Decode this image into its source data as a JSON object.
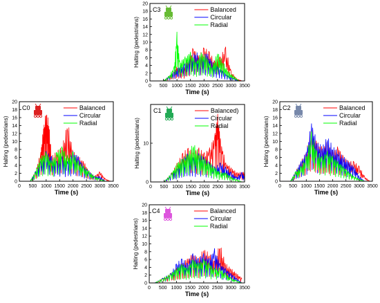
{
  "colors": {
    "balanced": "#ff0000",
    "circular": "#0000ff",
    "radial": "#00ff00",
    "axis": "#000000"
  },
  "chart_data": [
    {
      "id": "C3",
      "type": "line",
      "label": "C3",
      "icon": "robot-icon",
      "icon_color": "#66bb33",
      "xlabel": "Time (s)",
      "ylabel": "Halting (pedestrians)",
      "xlim": [
        0,
        3500
      ],
      "ylim": [
        0,
        20
      ],
      "xticks": [
        0,
        500,
        1000,
        1500,
        2000,
        2500,
        3000,
        3500
      ],
      "yticks": [
        0,
        2,
        4,
        6,
        8,
        10,
        12,
        14,
        16,
        18,
        20
      ],
      "series": [
        {
          "name": "Balanced",
          "values": [
            [
              500,
              0
            ],
            [
              700,
              1
            ],
            [
              900,
              2
            ],
            [
              1000,
              3
            ],
            [
              1200,
              2
            ],
            [
              1400,
              4
            ],
            [
              1600,
              7
            ],
            [
              1800,
              5
            ],
            [
              2000,
              7
            ],
            [
              2200,
              6
            ],
            [
              2400,
              4
            ],
            [
              2600,
              5
            ],
            [
              2800,
              7
            ],
            [
              3000,
              2
            ],
            [
              3200,
              0.5
            ],
            [
              3400,
              0
            ]
          ]
        },
        {
          "name": "Circular",
          "values": [
            [
              500,
              0
            ],
            [
              700,
              1
            ],
            [
              900,
              2
            ],
            [
              1100,
              3
            ],
            [
              1300,
              4
            ],
            [
              1500,
              5
            ],
            [
              1700,
              6
            ],
            [
              1900,
              5
            ],
            [
              2100,
              6
            ],
            [
              2300,
              4
            ],
            [
              2500,
              3
            ],
            [
              2700,
              2
            ],
            [
              2900,
              1
            ],
            [
              3100,
              0.5
            ],
            [
              3300,
              0
            ]
          ]
        },
        {
          "name": "Radial",
          "values": [
            [
              500,
              0
            ],
            [
              700,
              1
            ],
            [
              900,
              3
            ],
            [
              1000,
              10
            ],
            [
              1100,
              4
            ],
            [
              1300,
              5
            ],
            [
              1500,
              6
            ],
            [
              1700,
              4
            ],
            [
              1900,
              6
            ],
            [
              2100,
              5
            ],
            [
              2300,
              3
            ],
            [
              2500,
              6
            ],
            [
              2700,
              4
            ],
            [
              2900,
              2
            ],
            [
              3100,
              1
            ],
            [
              3300,
              0
            ]
          ]
        }
      ]
    },
    {
      "id": "C0",
      "type": "line",
      "label": "C0",
      "icon": "robot-icon",
      "icon_color": "#dd2222",
      "xlabel": "Time (s)",
      "ylabel": "Halting (pedestrians)",
      "xlim": [
        0,
        3500
      ],
      "ylim": [
        0,
        20
      ],
      "xticks": [
        0,
        500,
        1000,
        1500,
        2000,
        2500,
        3000,
        3500
      ],
      "yticks": [
        0,
        2,
        4,
        6,
        8,
        10,
        12,
        14,
        16,
        18,
        20
      ],
      "series": [
        {
          "name": "Balanced",
          "values": [
            [
              400,
              0
            ],
            [
              600,
              2
            ],
            [
              800,
              6
            ],
            [
              900,
              11
            ],
            [
              1000,
              14
            ],
            [
              1100,
              12
            ],
            [
              1200,
              5
            ],
            [
              1400,
              6
            ],
            [
              1600,
              7
            ],
            [
              1800,
              12
            ],
            [
              2000,
              6
            ],
            [
              2200,
              5
            ],
            [
              2400,
              4
            ],
            [
              2600,
              2
            ],
            [
              2800,
              1
            ],
            [
              3000,
              2
            ],
            [
              3200,
              0.5
            ],
            [
              3400,
              0
            ]
          ]
        },
        {
          "name": "Circular",
          "values": [
            [
              400,
              0
            ],
            [
              600,
              2
            ],
            [
              800,
              4
            ],
            [
              1000,
              6
            ],
            [
              1200,
              5
            ],
            [
              1400,
              4
            ],
            [
              1600,
              5
            ],
            [
              1800,
              4
            ],
            [
              2000,
              6
            ],
            [
              2200,
              5
            ],
            [
              2400,
              3
            ],
            [
              2600,
              2
            ],
            [
              2800,
              1
            ],
            [
              3000,
              1
            ],
            [
              3200,
              0
            ]
          ]
        },
        {
          "name": "Radial",
          "values": [
            [
              400,
              0
            ],
            [
              600,
              2
            ],
            [
              800,
              5
            ],
            [
              1000,
              6
            ],
            [
              1200,
              4
            ],
            [
              1400,
              6
            ],
            [
              1600,
              7
            ],
            [
              1800,
              5
            ],
            [
              2000,
              6
            ],
            [
              2200,
              4
            ],
            [
              2400,
              3
            ],
            [
              2600,
              2
            ],
            [
              2800,
              1
            ],
            [
              3000,
              0.5
            ],
            [
              3200,
              0
            ]
          ]
        }
      ]
    },
    {
      "id": "C1",
      "type": "line",
      "label": "C1",
      "icon": "robot-icon",
      "icon_color": "#22aa55",
      "xlabel": "Time (s)",
      "ylabel": "Halting (pedestrians)",
      "xlim": [
        0,
        3500
      ],
      "ylim": [
        0,
        20
      ],
      "xticks": [
        0,
        500,
        1000,
        1500,
        2000,
        2500,
        3000,
        3500
      ],
      "yticks": [
        0,
        10
      ],
      "series": [
        {
          "name": "Balanced)",
          "values": [
            [
              500,
              0
            ],
            [
              800,
              2
            ],
            [
              1000,
              4
            ],
            [
              1200,
              6
            ],
            [
              1400,
              7
            ],
            [
              1600,
              6
            ],
            [
              1800,
              7
            ],
            [
              2000,
              6
            ],
            [
              2200,
              7
            ],
            [
              2400,
              10
            ],
            [
              2500,
              14
            ],
            [
              2600,
              9
            ],
            [
              2800,
              4
            ],
            [
              3000,
              3
            ],
            [
              3200,
              2
            ],
            [
              3400,
              2
            ],
            [
              3500,
              2
            ]
          ]
        },
        {
          "name": "Circular",
          "values": [
            [
              500,
              0
            ],
            [
              800,
              2
            ],
            [
              1000,
              3
            ],
            [
              1200,
              5
            ],
            [
              1400,
              6
            ],
            [
              1600,
              5
            ],
            [
              1800,
              6
            ],
            [
              2000,
              5
            ],
            [
              2200,
              4
            ],
            [
              2400,
              3
            ],
            [
              2600,
              4
            ],
            [
              2800,
              3
            ],
            [
              3000,
              2
            ],
            [
              3200,
              1
            ],
            [
              3400,
              2
            ],
            [
              3500,
              1
            ]
          ]
        },
        {
          "name": "Radial",
          "values": [
            [
              500,
              0
            ],
            [
              800,
              2
            ],
            [
              1000,
              4
            ],
            [
              1200,
              5
            ],
            [
              1400,
              6
            ],
            [
              1600,
              8
            ],
            [
              1800,
              6
            ],
            [
              2000,
              5
            ],
            [
              2200,
              4
            ],
            [
              2400,
              3
            ],
            [
              2600,
              2
            ],
            [
              2800,
              2
            ],
            [
              3000,
              1
            ],
            [
              3200,
              0.5
            ],
            [
              3400,
              0
            ]
          ]
        }
      ]
    },
    {
      "id": "C2",
      "type": "line",
      "label": "C2",
      "icon": "robot-icon",
      "icon_color": "#7788aa",
      "xlabel": "Time (s)",
      "ylabel": "Halting (pedestrians)",
      "xlim": [
        0,
        3500
      ],
      "ylim": [
        0,
        20
      ],
      "xticks": [
        0,
        500,
        1000,
        1500,
        2000,
        2500,
        3000,
        3500
      ],
      "yticks": [
        0,
        2,
        4,
        6,
        8,
        10,
        12,
        14,
        16,
        18,
        20
      ],
      "series": [
        {
          "name": "Balanced",
          "values": [
            [
              400,
              0
            ],
            [
              600,
              2
            ],
            [
              800,
              4
            ],
            [
              1000,
              6
            ],
            [
              1200,
              11
            ],
            [
              1400,
              8
            ],
            [
              1600,
              7
            ],
            [
              1800,
              8
            ],
            [
              2000,
              6
            ],
            [
              2200,
              7
            ],
            [
              2400,
              5
            ],
            [
              2600,
              4
            ],
            [
              2800,
              4
            ],
            [
              3000,
              3
            ],
            [
              3200,
              1
            ],
            [
              3400,
              0
            ]
          ]
        },
        {
          "name": "Circular",
          "values": [
            [
              400,
              0
            ],
            [
              600,
              2
            ],
            [
              800,
              4
            ],
            [
              1000,
              6
            ],
            [
              1200,
              12
            ],
            [
              1400,
              8
            ],
            [
              1600,
              7
            ],
            [
              1800,
              9
            ],
            [
              2000,
              7
            ],
            [
              2200,
              6
            ],
            [
              2400,
              5
            ],
            [
              2600,
              4
            ],
            [
              2800,
              3
            ],
            [
              3000,
              1
            ],
            [
              3200,
              0
            ]
          ]
        },
        {
          "name": "Radial",
          "values": [
            [
              400,
              0
            ],
            [
              600,
              2
            ],
            [
              800,
              3
            ],
            [
              1000,
              5
            ],
            [
              1200,
              10
            ],
            [
              1400,
              6
            ],
            [
              1600,
              5
            ],
            [
              1800,
              6
            ],
            [
              2000,
              5
            ],
            [
              2200,
              4
            ],
            [
              2400,
              3
            ],
            [
              2600,
              2
            ],
            [
              2800,
              1
            ],
            [
              3000,
              0.5
            ],
            [
              3200,
              0
            ]
          ]
        }
      ]
    },
    {
      "id": "C4",
      "type": "line",
      "label": "C4",
      "icon": "robot-icon",
      "icon_color": "#dd55dd",
      "xlabel": "Time (s)",
      "ylabel": "Halting (pedestrians)",
      "xlim": [
        0,
        3500
      ],
      "ylim": [
        0,
        20
      ],
      "xticks": [
        0,
        500,
        1000,
        1500,
        2000,
        2500,
        3000,
        3500
      ],
      "yticks": [
        0,
        2,
        4,
        6,
        8,
        10,
        12,
        14,
        16,
        18,
        20
      ],
      "series": [
        {
          "name": "Balanced",
          "values": [
            [
              200,
              0
            ],
            [
              500,
              1
            ],
            [
              800,
              2
            ],
            [
              1000,
              3
            ],
            [
              1200,
              4
            ],
            [
              1400,
              5
            ],
            [
              1600,
              6
            ],
            [
              1800,
              5
            ],
            [
              2000,
              7
            ],
            [
              2200,
              6
            ],
            [
              2400,
              5
            ],
            [
              2600,
              8
            ],
            [
              2800,
              4
            ],
            [
              3000,
              3
            ],
            [
              3200,
              2
            ],
            [
              3400,
              1
            ]
          ]
        },
        {
          "name": "Circular",
          "values": [
            [
              200,
              0
            ],
            [
              500,
              1
            ],
            [
              800,
              2
            ],
            [
              1000,
              4
            ],
            [
              1200,
              5
            ],
            [
              1400,
              4
            ],
            [
              1600,
              6
            ],
            [
              1800,
              5
            ],
            [
              2000,
              6
            ],
            [
              2200,
              5
            ],
            [
              2400,
              7
            ],
            [
              2600,
              4
            ],
            [
              2800,
              3
            ],
            [
              3000,
              2
            ],
            [
              3200,
              1
            ],
            [
              3400,
              0
            ]
          ]
        },
        {
          "name": "Radial",
          "values": [
            [
              200,
              0
            ],
            [
              500,
              1
            ],
            [
              800,
              2
            ],
            [
              1000,
              3
            ],
            [
              1200,
              4
            ],
            [
              1400,
              3
            ],
            [
              1600,
              5
            ],
            [
              1800,
              4
            ],
            [
              2000,
              5
            ],
            [
              2200,
              4
            ],
            [
              2400,
              3
            ],
            [
              2600,
              3
            ],
            [
              2800,
              2
            ],
            [
              3000,
              1
            ],
            [
              3200,
              0.5
            ],
            [
              3400,
              0
            ]
          ]
        }
      ]
    }
  ]
}
